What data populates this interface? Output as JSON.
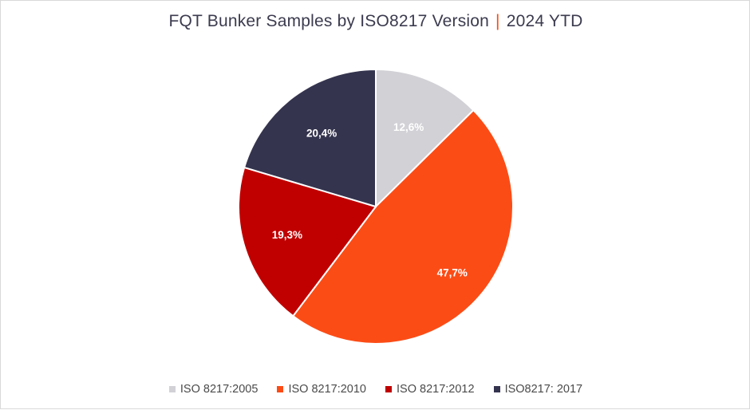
{
  "chart_data": {
    "type": "pie",
    "title": "FQT Bunker Samples by ISO8217 Version",
    "title_separator": "|",
    "subtitle": "2024 YTD",
    "slices": [
      {
        "name": "ISO 8217:2005",
        "value": 12.6,
        "label": "12,6%",
        "color": "#d1d1d6"
      },
      {
        "name": "ISO 8217:2010",
        "value": 47.7,
        "label": "47,7%",
        "color": "#fc4c16"
      },
      {
        "name": "ISO 8217:2012",
        "value": 19.3,
        "label": "19,3%",
        "color": "#c00000"
      },
      {
        "name": "ISO8217: 2017",
        "value": 20.4,
        "label": "20,4%",
        "color": "#35344f"
      }
    ],
    "legend_position": "bottom",
    "start_angle": "12 o'clock, clockwise",
    "accent_color": "#fc4c16"
  }
}
